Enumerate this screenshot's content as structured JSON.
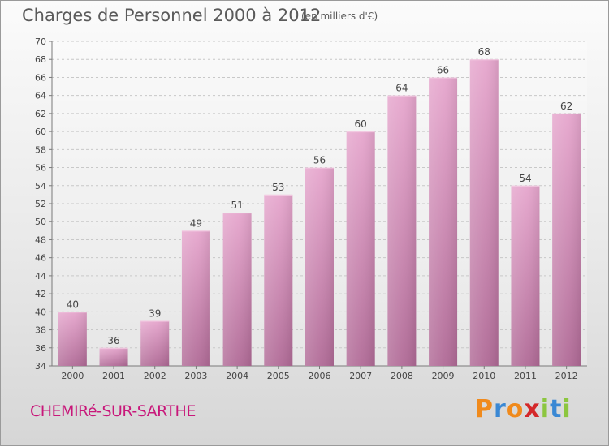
{
  "header": {
    "title": "Charges de Personnel 2000 à 2012",
    "subtitle": "(en milliers d'€)"
  },
  "footer": {
    "commune": "CHEMIRé-SUR-SARTHE",
    "brand": {
      "letters": [
        "P",
        "r",
        "o",
        "x",
        "i",
        "t",
        "i"
      ],
      "colors": [
        "#f08a1c",
        "#3a88d4",
        "#f08a1c",
        "#d4282a",
        "#8cc63f",
        "#3a88d4",
        "#8cc63f"
      ]
    }
  },
  "chart_data": {
    "type": "bar",
    "categories": [
      "2000",
      "2001",
      "2002",
      "2003",
      "2004",
      "2005",
      "2006",
      "2007",
      "2008",
      "2009",
      "2010",
      "2011",
      "2012"
    ],
    "values": [
      40,
      36,
      39,
      49,
      51,
      53,
      56,
      60,
      64,
      66,
      68,
      54,
      62
    ],
    "ylim": [
      34,
      70
    ],
    "yticks": [
      34,
      36,
      38,
      40,
      42,
      44,
      46,
      48,
      50,
      52,
      54,
      56,
      58,
      60,
      62,
      64,
      66,
      68,
      70
    ],
    "grid": true,
    "bar_color": "#cc7aac",
    "data_labels": true
  }
}
